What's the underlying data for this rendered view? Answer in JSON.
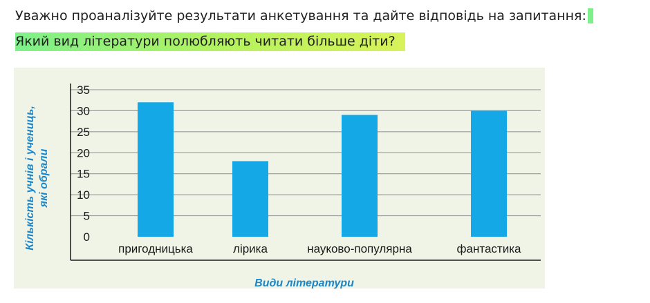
{
  "question": {
    "intro": "Уважно проаналізуйте результати анкетування та дайте відповідь на запитання:",
    "highlight": "Який вид літератури полюбляють читати більше діти?"
  },
  "colors": {
    "bar": "#14a8e6",
    "panel": "#eff4e6",
    "axis_title": "#1c86c8",
    "highlight": "#7ef08a"
  },
  "chart_data": {
    "type": "bar",
    "categories": [
      "пригодницька",
      "лірика",
      "науково-популярна",
      "фантастика"
    ],
    "values": [
      32,
      18,
      29,
      30
    ],
    "xlabel": "Види літератури",
    "ylabel_line1": "Кількість учнів і учениць,",
    "ylabel_line2": "які обрали",
    "yticks": [
      "0",
      "5",
      "10",
      "15",
      "20",
      "25",
      "30",
      "35"
    ],
    "ylim": [
      0,
      35
    ],
    "grid": true
  }
}
